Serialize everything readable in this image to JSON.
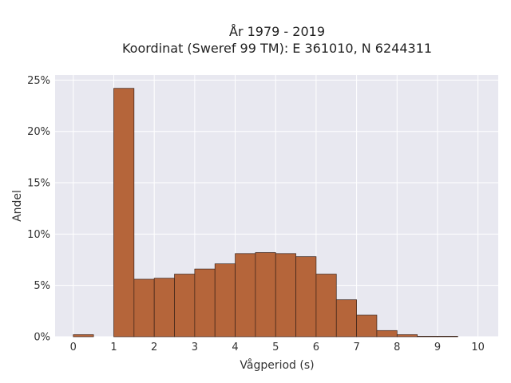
{
  "chart_data": {
    "type": "bar",
    "title": "År 1979 - 2019",
    "subtitle": "Koordinat (Sweref 99 TM): E 361010, N 6244311",
    "xlabel": "Vågperiod (s)",
    "ylabel": "Andel",
    "bin_width": 0.5,
    "bin_starts": [
      0,
      0.5,
      1,
      1.5,
      2,
      2.5,
      3,
      3.5,
      4,
      4.5,
      5,
      5.5,
      6,
      6.5,
      7,
      7.5,
      8,
      8.5,
      9,
      9.5
    ],
    "values": [
      0.2,
      0,
      24.2,
      5.6,
      5.7,
      6.1,
      6.6,
      7.1,
      8.1,
      8.2,
      8.1,
      7.8,
      6.1,
      3.6,
      2.1,
      0.6,
      0.2,
      0.05,
      0.05,
      0
    ],
    "xlim": [
      -0.45,
      10.5
    ],
    "ylim": [
      0,
      25.5
    ],
    "xticks": [
      0,
      1,
      2,
      3,
      4,
      5,
      6,
      7,
      8,
      9,
      10
    ],
    "xtick_labels": [
      "0",
      "1",
      "2",
      "3",
      "4",
      "5",
      "6",
      "7",
      "8",
      "9",
      "10"
    ],
    "yticks": [
      0,
      5,
      10,
      15,
      20,
      25
    ],
    "ytick_labels": [
      "0%",
      "5%",
      "10%",
      "15%",
      "20%",
      "25%"
    ],
    "grid": true,
    "bar_color": "#b5653a",
    "bar_edge_color": "#3a2218",
    "plot_bg": "#e8e8f0"
  }
}
